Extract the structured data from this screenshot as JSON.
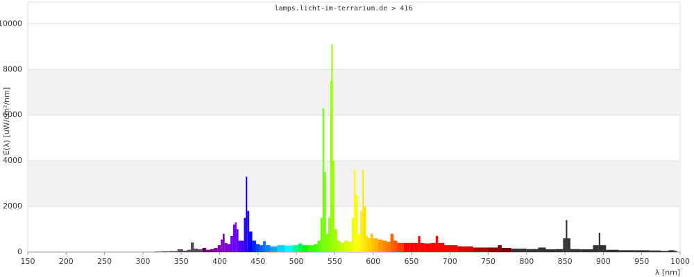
{
  "chart_data": {
    "type": "spectrum",
    "title": "lamps.licht-im-terrarium.de > 416",
    "x_label": "λ [nm]",
    "y_label": "E(λ) [uW/cm²/nm]",
    "x": [
      310,
      320,
      330,
      340,
      350,
      355,
      360,
      365,
      368,
      375,
      380,
      385,
      390,
      395,
      400,
      403,
      405,
      408,
      412,
      416,
      419,
      421,
      423,
      426,
      430,
      433,
      435,
      437,
      440,
      445,
      450,
      455,
      458,
      462,
      470,
      480,
      490,
      500,
      505,
      510,
      520,
      525,
      530,
      533,
      535,
      537,
      540,
      543,
      545,
      546,
      548,
      551,
      555,
      560,
      565,
      570,
      574,
      576,
      578,
      581,
      585,
      587,
      589,
      592,
      595,
      598,
      602,
      610,
      615,
      620,
      625,
      628,
      635,
      645,
      650,
      657,
      660,
      663,
      670,
      680,
      683,
      686,
      700,
      720,
      740,
      760,
      765,
      770,
      790,
      810,
      820,
      830,
      845,
      850,
      852,
      854,
      860,
      880,
      893,
      895,
      897,
      910,
      930,
      950,
      970,
      980,
      990,
      995
    ],
    "values": [
      0,
      20,
      30,
      40,
      120,
      60,
      100,
      420,
      150,
      120,
      180,
      100,
      130,
      180,
      300,
      550,
      800,
      400,
      350,
      700,
      1200,
      1300,
      1000,
      500,
      500,
      1500,
      3300,
      1800,
      900,
      500,
      350,
      300,
      480,
      300,
      250,
      300,
      280,
      300,
      380,
      300,
      300,
      350,
      500,
      1500,
      6300,
      3500,
      800,
      1500,
      7500,
      9100,
      4000,
      1000,
      500,
      400,
      500,
      450,
      1500,
      3600,
      2500,
      800,
      1800,
      3600,
      2000,
      700,
      600,
      800,
      600,
      550,
      500,
      450,
      800,
      500,
      400,
      400,
      400,
      400,
      700,
      400,
      380,
      400,
      700,
      400,
      300,
      250,
      200,
      200,
      300,
      180,
      150,
      130,
      200,
      120,
      130,
      600,
      1400,
      600,
      130,
      120,
      300,
      850,
      300,
      100,
      80,
      80,
      70,
      50,
      80,
      50
    ],
    "xlim": [
      150,
      1000
    ],
    "ylim": [
      0,
      10950
    ],
    "xticks": [
      150,
      200,
      250,
      300,
      350,
      400,
      450,
      500,
      550,
      600,
      650,
      700,
      750,
      800,
      850,
      900,
      950,
      1000
    ],
    "yticks": [
      0,
      2000,
      4000,
      6000,
      8000,
      10000
    ],
    "grid": true
  }
}
